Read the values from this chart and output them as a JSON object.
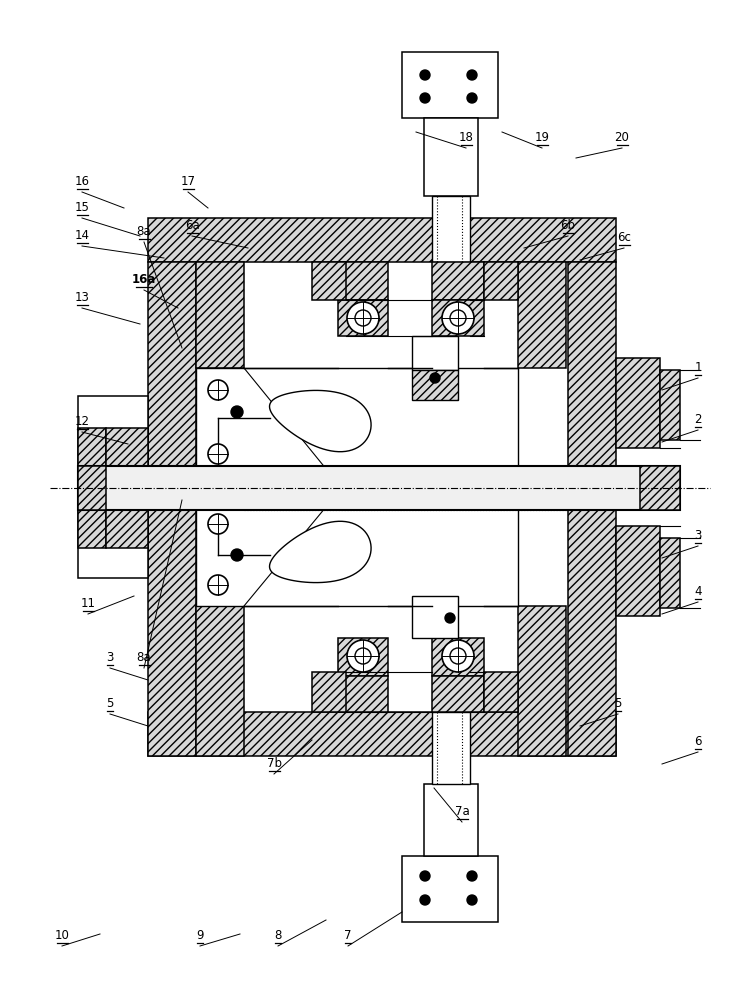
{
  "bg": "#ffffff",
  "fig_w": 7.31,
  "fig_h": 10.0,
  "dpi": 100,
  "hatch_fc": "#d8d8d8",
  "labels": [
    [
      "1",
      662,
      390,
      698,
      378
    ],
    [
      "2",
      662,
      442,
      698,
      430
    ],
    [
      "3",
      662,
      558,
      698,
      546
    ],
    [
      "3",
      148,
      680,
      110,
      668
    ],
    [
      "4",
      662,
      614,
      698,
      602
    ],
    [
      "5",
      580,
      726,
      618,
      714
    ],
    [
      "5",
      148,
      726,
      110,
      714
    ],
    [
      "6",
      662,
      764,
      698,
      752
    ],
    [
      "6a",
      248,
      248,
      192,
      236
    ],
    [
      "6b",
      524,
      248,
      568,
      236
    ],
    [
      "6c",
      580,
      260,
      624,
      248
    ],
    [
      "7",
      402,
      912,
      348,
      946
    ],
    [
      "7a",
      434,
      788,
      462,
      822
    ],
    [
      "7b",
      312,
      740,
      274,
      774
    ],
    [
      "8",
      326,
      920,
      278,
      946
    ],
    [
      "8a",
      182,
      500,
      144,
      668
    ],
    [
      "8a",
      182,
      348,
      144,
      242
    ],
    [
      "9",
      240,
      934,
      200,
      946
    ],
    [
      "10",
      100,
      934,
      62,
      946
    ],
    [
      "11",
      134,
      596,
      88,
      614
    ],
    [
      "12",
      128,
      444,
      82,
      432
    ],
    [
      "13",
      140,
      324,
      82,
      308
    ],
    [
      "14",
      164,
      258,
      82,
      246
    ],
    [
      "15",
      140,
      236,
      82,
      218
    ],
    [
      "16",
      124,
      208,
      82,
      192
    ],
    [
      "16a",
      178,
      308,
      144,
      290
    ],
    [
      "17",
      208,
      208,
      188,
      192
    ],
    [
      "18",
      416,
      132,
      466,
      148
    ],
    [
      "19",
      502,
      132,
      542,
      148
    ],
    [
      "20",
      576,
      158,
      622,
      148
    ]
  ]
}
